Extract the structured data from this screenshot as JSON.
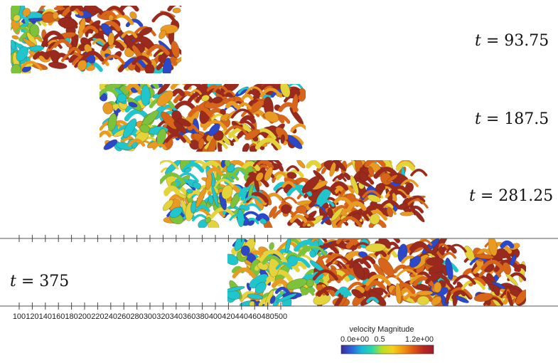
{
  "snapshots": [
    {
      "label_var": "t",
      "label_eq": " = ",
      "label_val": "93.75"
    },
    {
      "label_var": "t",
      "label_eq": " = ",
      "label_val": "187.5"
    },
    {
      "label_var": "t",
      "label_eq": " = ",
      "label_val": "281.25"
    },
    {
      "label_var": "t",
      "label_eq": " = ",
      "label_val": "375"
    }
  ],
  "axis": {
    "ticks": [
      "100",
      "120",
      "140",
      "160",
      "180",
      "200",
      "220",
      "240",
      "260",
      "280",
      "300",
      "320",
      "340",
      "360",
      "380",
      "400",
      "420",
      "440",
      "460",
      "480",
      "500"
    ]
  },
  "colorbar": {
    "title": "velocity Magnitude",
    "min_label": "0.0e+00",
    "mid_label": "0.5",
    "max_label": "1.2e+00",
    "stops": [
      "#3b2b9a",
      "#2f62d8",
      "#19b8d8",
      "#29d8a8",
      "#b8e020",
      "#f4d020",
      "#f29a12",
      "#df5a12",
      "#b82a20",
      "#9a1e2a"
    ]
  },
  "palette": {
    "dark_red": "#9b2a1e",
    "orange": "#d8661a",
    "amber": "#e89a22",
    "yellow": "#e2d43a",
    "green": "#7cc23a",
    "cyan": "#20c6cc",
    "blue": "#2a48c8"
  }
}
